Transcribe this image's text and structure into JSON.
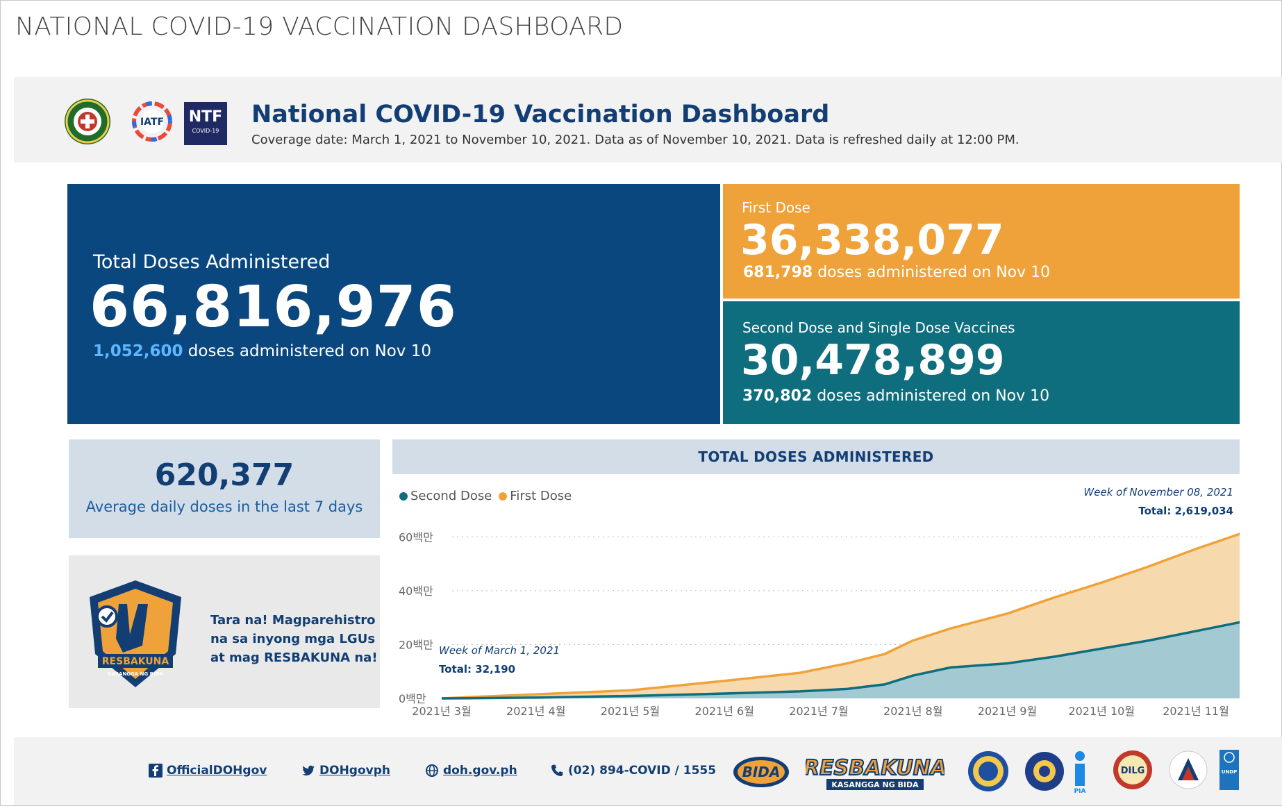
{
  "page_title": "NATIONAL COVID-19 VACCINATION DASHBOARD",
  "header": {
    "title": "National COVID-19 Vaccination Dashboard",
    "subtitle": "Coverage date: March 1, 2021 to November 10, 2021. Data as of November 10, 2021. Data is refreshed daily at 12:00 PM.",
    "logos": [
      "doh-seal-icon",
      "iatf-logo-icon",
      "ntf-covid19-logo-icon"
    ],
    "ntf_logo_text": "NTF",
    "ntf_logo_sub": "COVID-19"
  },
  "total_card": {
    "label": "Total Doses Administered",
    "value": "66,816,976",
    "sub_value": "1,052,600",
    "sub_text": " doses administered on Nov 10"
  },
  "first_card": {
    "label": "First Dose",
    "value": "36,338,077",
    "sub_value": "681,798",
    "sub_text": " doses administered on Nov 10"
  },
  "second_card": {
    "label": "Second Dose and Single Dose Vaccines",
    "value": "30,478,899",
    "sub_value": "370,802",
    "sub_text": " doses administered on Nov 10"
  },
  "average": {
    "value": "620,377",
    "label": "Average daily doses in the last 7 days"
  },
  "promo": {
    "line1": "Tara na! Magparehistro",
    "line2": "na sa inyong mga LGUs",
    "line3": "at mag RESBAKUNA na!",
    "logo_text": "RESBAKUNA",
    "logo_sub": "KASANGGA NG BIDA"
  },
  "chart_panel": {
    "title": "TOTAL DOSES ADMINISTERED",
    "ann_right_week": "Week of November 08, 2021",
    "ann_right_total": "Total: 2,619,034",
    "ann_left_week": "Week of March 1, 2021",
    "ann_left_total": "Total: 32,190"
  },
  "chart_data": {
    "type": "area",
    "stacked": true,
    "x": [
      "2021-03",
      "2021-04",
      "2021-05",
      "2021-06",
      "2021-07",
      "2021-08",
      "2021-09",
      "2021-10",
      "2021-11"
    ],
    "x_tick_labels": [
      "2021년 3월",
      "2021년 4월",
      "2021년 5월",
      "2021년 6월",
      "2021년 7월",
      "2021년 8월",
      "2021년 9월",
      "2021년 10월",
      "2021년 11월"
    ],
    "y_tick_labels": [
      "0백만",
      "20백만",
      "40백만",
      "60백만"
    ],
    "ylim": [
      0,
      66000000
    ],
    "legend_position": "top-left",
    "series": [
      {
        "name": "Second Dose",
        "color": "#0e6e7e",
        "fill": "#a3c9d3",
        "points": [
          [
            0,
            0
          ],
          [
            0.3,
            0.05
          ],
          [
            1,
            0.3
          ],
          [
            2,
            0.9
          ],
          [
            3,
            1.8
          ],
          [
            3.8,
            2.6
          ],
          [
            4.3,
            3.5
          ],
          [
            4.7,
            5.2
          ],
          [
            5.0,
            8.5
          ],
          [
            5.4,
            11.5
          ],
          [
            6.0,
            13.0
          ],
          [
            6.5,
            15.5
          ],
          [
            7.0,
            18.5
          ],
          [
            7.5,
            21.5
          ],
          [
            8.0,
            25.0
          ],
          [
            8.5,
            28.5
          ],
          [
            8.85,
            30.5
          ]
        ]
      },
      {
        "name": "First Dose",
        "color": "#f0a23a",
        "fill": "#f7d9ae",
        "points": [
          [
            0,
            0
          ],
          [
            0.3,
            0.5
          ],
          [
            1,
            1.5
          ],
          [
            2,
            3.0
          ],
          [
            3,
            6.5
          ],
          [
            3.8,
            9.5
          ],
          [
            4.3,
            13.0
          ],
          [
            4.7,
            16.5
          ],
          [
            5.0,
            21.5
          ],
          [
            5.4,
            26.0
          ],
          [
            6.0,
            31.5
          ],
          [
            6.5,
            37.5
          ],
          [
            7.0,
            43.0
          ],
          [
            7.5,
            49.0
          ],
          [
            8.0,
            55.5
          ],
          [
            8.5,
            61.5
          ],
          [
            8.85,
            66.8
          ]
        ]
      }
    ]
  },
  "footer": {
    "facebook": "OfficialDOHgov",
    "twitter": "DOHgovph",
    "website": "doh.gov.ph",
    "phone": "(02) 894-COVID / 1555",
    "logo_resbakuna": "RESBAKUNA",
    "logo_resbakuna_sub": "KASANGGA NG BIDA",
    "logo_bida": "BIDA",
    "logo_dilg": "DILG",
    "logo_pia": "PIA",
    "logo_undp": "UNDP"
  },
  "colors": {
    "navy": "#0b477f",
    "orange": "#f0a23a",
    "teal": "#0e6e7e",
    "light_blue": "#5db7ff"
  }
}
